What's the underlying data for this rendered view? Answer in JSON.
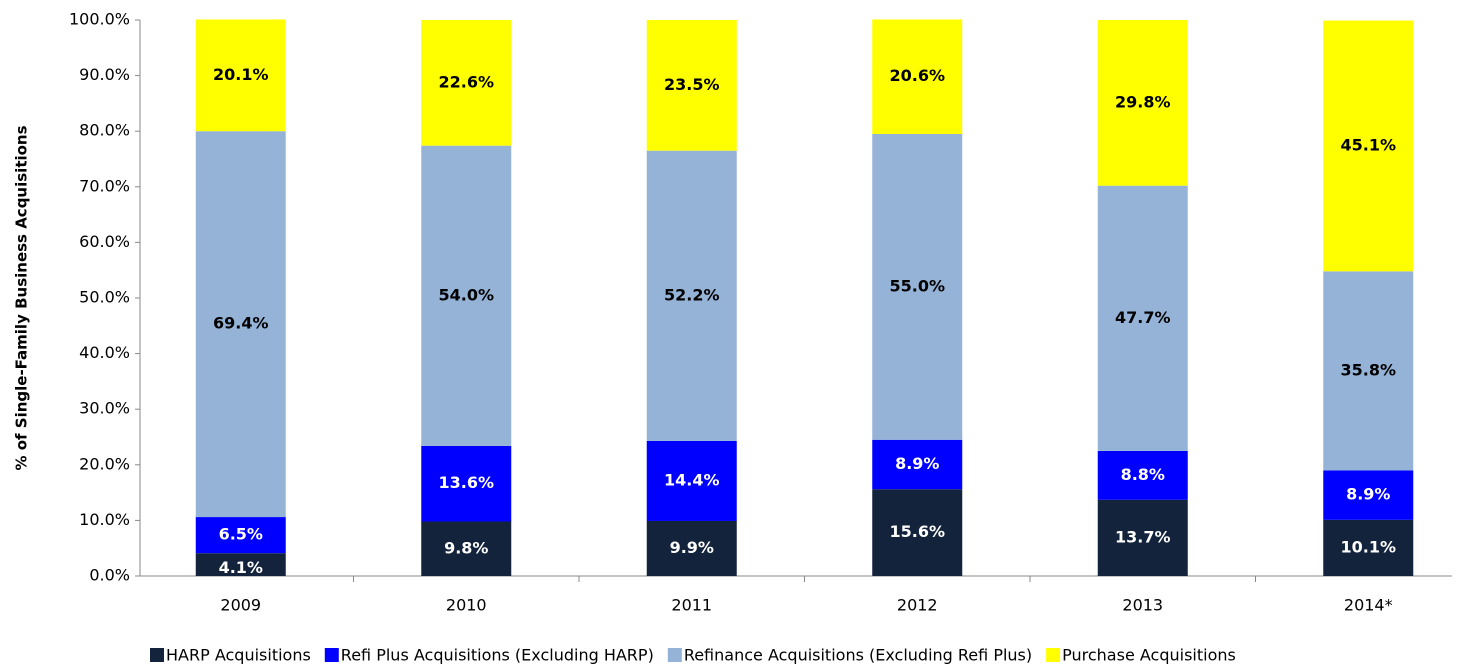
{
  "chart_data": {
    "type": "stacked_bar",
    "y_label": "% of Single-Family Business Acquisitions",
    "categories": [
      "2009",
      "2010",
      "2011",
      "2012",
      "2013",
      "2014*"
    ],
    "series": [
      {
        "name": "HARP Acquisitions",
        "color": "#14233c",
        "values": [
          4.1,
          9.8,
          9.9,
          15.6,
          13.7,
          10.1
        ],
        "value_labels": [
          "4.1%",
          "9.8%",
          "9.9%",
          "15.6%",
          "13.7%",
          "10.1%"
        ]
      },
      {
        "name": "Refi Plus Acquisitions (Excluding HARP)",
        "color": "#0000ff",
        "values": [
          6.5,
          13.6,
          14.4,
          8.9,
          8.8,
          8.9
        ],
        "value_labels": [
          "6.5%",
          "13.6%",
          "14.4%",
          "8.9%",
          "8.8%",
          "8.9%"
        ]
      },
      {
        "name": "Refinance Acquisitions (Excluding Refi Plus)",
        "color": "#95b3d7",
        "values": [
          69.4,
          54.0,
          52.2,
          55.0,
          47.7,
          35.8
        ],
        "value_labels": [
          "69.4%",
          "54.0%",
          "52.2%",
          "55.0%",
          "47.7%",
          "35.8%"
        ]
      },
      {
        "name": "Purchase Acquisitions",
        "color": "#ffff00",
        "values": [
          20.1,
          22.6,
          23.5,
          20.6,
          29.8,
          45.1
        ],
        "value_labels": [
          "20.1%",
          "22.6%",
          "23.5%",
          "20.6%",
          "29.8%",
          "45.1%"
        ]
      }
    ],
    "ylim": [
      0,
      100
    ],
    "yticks": [
      {
        "value": 0,
        "label": "0.0%"
      },
      {
        "value": 10,
        "label": "10.0%"
      },
      {
        "value": 20,
        "label": "20.0%"
      },
      {
        "value": 30,
        "label": "30.0%"
      },
      {
        "value": 40,
        "label": "40.0%"
      },
      {
        "value": 50,
        "label": "50.0%"
      },
      {
        "value": 60,
        "label": "60.0%"
      },
      {
        "value": 70,
        "label": "70.0%"
      },
      {
        "value": 80,
        "label": "80.0%"
      },
      {
        "value": 90,
        "label": "90.0%"
      },
      {
        "value": 100,
        "label": "100.0%"
      }
    ],
    "grid": false
  }
}
